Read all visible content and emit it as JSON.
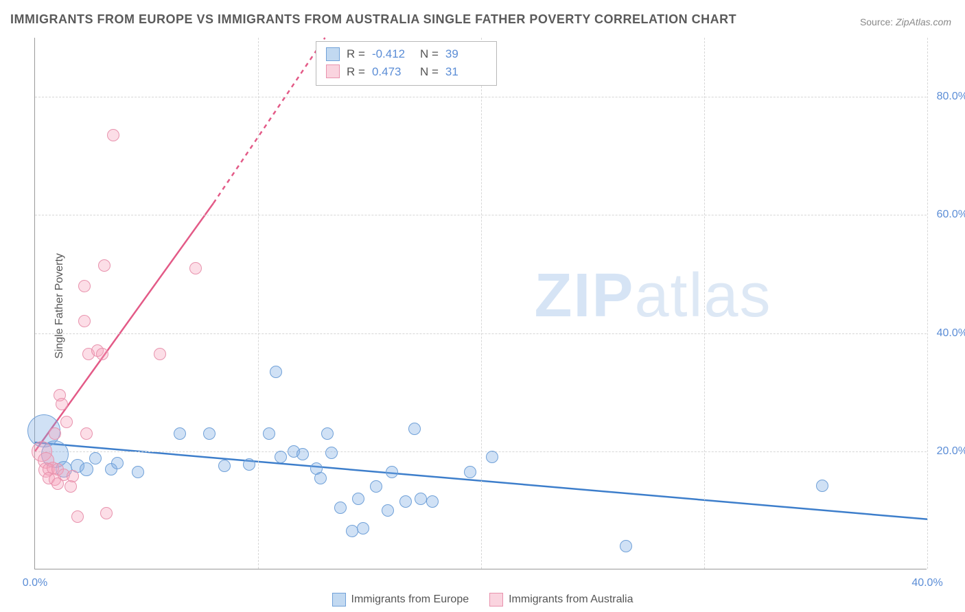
{
  "title": "IMMIGRANTS FROM EUROPE VS IMMIGRANTS FROM AUSTRALIA SINGLE FATHER POVERTY CORRELATION CHART",
  "source_label": "Source:",
  "source_value": "ZipAtlas.com",
  "y_axis_title": "Single Father Poverty",
  "watermark_bold": "ZIP",
  "watermark_thin": "atlas",
  "chart": {
    "type": "scatter",
    "xlim": [
      0,
      40
    ],
    "ylim": [
      0,
      90
    ],
    "x_ticks": [
      0,
      10,
      20,
      30,
      40
    ],
    "x_tick_labels": [
      "0.0%",
      "",
      "",
      "",
      "40.0%"
    ],
    "y_ticks": [
      20,
      40,
      60,
      80
    ],
    "y_tick_labels": [
      "20.0%",
      "40.0%",
      "60.0%",
      "80.0%"
    ],
    "background_color": "#ffffff",
    "grid_color": "#d6d6d6",
    "grid_dashed": true,
    "series": [
      {
        "name": "Immigrants from Europe",
        "color_fill": "rgba(120,170,225,0.35)",
        "color_stroke": "#6fa0d8",
        "line_color": "#3d7ecb",
        "marker_r_base": 9,
        "R": "-0.412",
        "N": "39",
        "regression": {
          "x1": 0,
          "y1": 21.5,
          "x2": 40,
          "y2": 8.5
        },
        "points": [
          {
            "x": 0.4,
            "y": 23.5,
            "r": 24
          },
          {
            "x": 0.9,
            "y": 19.5,
            "r": 20
          },
          {
            "x": 1.3,
            "y": 17.0,
            "r": 12
          },
          {
            "x": 1.9,
            "y": 17.5,
            "r": 10
          },
          {
            "x": 2.3,
            "y": 17.0,
            "r": 10
          },
          {
            "x": 2.7,
            "y": 18.8,
            "r": 9
          },
          {
            "x": 3.4,
            "y": 17.0,
            "r": 9
          },
          {
            "x": 3.7,
            "y": 18.0,
            "r": 9
          },
          {
            "x": 4.6,
            "y": 16.5,
            "r": 9
          },
          {
            "x": 6.5,
            "y": 23.0,
            "r": 9
          },
          {
            "x": 7.8,
            "y": 23.0,
            "r": 9
          },
          {
            "x": 8.5,
            "y": 17.5,
            "r": 9
          },
          {
            "x": 9.6,
            "y": 17.8,
            "r": 9
          },
          {
            "x": 10.5,
            "y": 23.0,
            "r": 9
          },
          {
            "x": 10.8,
            "y": 33.5,
            "r": 9
          },
          {
            "x": 11.0,
            "y": 19.0,
            "r": 9
          },
          {
            "x": 11.6,
            "y": 20.0,
            "r": 9
          },
          {
            "x": 12.6,
            "y": 17.1,
            "r": 9
          },
          {
            "x": 12.8,
            "y": 15.5,
            "r": 9
          },
          {
            "x": 12.0,
            "y": 19.5,
            "r": 9
          },
          {
            "x": 13.1,
            "y": 23.0,
            "r": 9
          },
          {
            "x": 13.3,
            "y": 19.8,
            "r": 9
          },
          {
            "x": 13.7,
            "y": 10.5,
            "r": 9
          },
          {
            "x": 14.2,
            "y": 6.5,
            "r": 9
          },
          {
            "x": 14.5,
            "y": 12.0,
            "r": 9
          },
          {
            "x": 14.7,
            "y": 7.0,
            "r": 9
          },
          {
            "x": 15.3,
            "y": 14.0,
            "r": 9
          },
          {
            "x": 15.8,
            "y": 10.0,
            "r": 9
          },
          {
            "x": 16.0,
            "y": 16.5,
            "r": 9
          },
          {
            "x": 16.6,
            "y": 11.5,
            "r": 9
          },
          {
            "x": 17.0,
            "y": 23.8,
            "r": 9
          },
          {
            "x": 17.3,
            "y": 12.0,
            "r": 9
          },
          {
            "x": 17.8,
            "y": 11.5,
            "r": 9
          },
          {
            "x": 19.5,
            "y": 16.5,
            "r": 9
          },
          {
            "x": 20.5,
            "y": 19.0,
            "r": 9
          },
          {
            "x": 26.5,
            "y": 4.0,
            "r": 9
          },
          {
            "x": 35.3,
            "y": 14.2,
            "r": 9
          }
        ]
      },
      {
        "name": "Immigrants from Australia",
        "color_fill": "rgba(245,160,185,0.35)",
        "color_stroke": "#e892ad",
        "line_color": "#e35a87",
        "marker_r_base": 9,
        "R": "0.473",
        "N": "31",
        "regression": {
          "x1": 0,
          "y1": 20.0,
          "x2": 8.0,
          "y2": 62.0
        },
        "regression_dashed_extend": {
          "x1": 8.0,
          "y1": 62.0,
          "x2": 13.0,
          "y2": 90.0
        },
        "points": [
          {
            "x": 0.3,
            "y": 20.0,
            "r": 15
          },
          {
            "x": 0.5,
            "y": 18.5,
            "r": 12
          },
          {
            "x": 0.5,
            "y": 16.8,
            "r": 11
          },
          {
            "x": 0.6,
            "y": 17.0,
            "r": 9
          },
          {
            "x": 0.6,
            "y": 15.5,
            "r": 9
          },
          {
            "x": 0.8,
            "y": 17.2,
            "r": 9
          },
          {
            "x": 0.9,
            "y": 23.0,
            "r": 9
          },
          {
            "x": 0.9,
            "y": 15.2,
            "r": 9
          },
          {
            "x": 1.0,
            "y": 17.0,
            "r": 9
          },
          {
            "x": 1.0,
            "y": 14.5,
            "r": 9
          },
          {
            "x": 1.1,
            "y": 29.5,
            "r": 9
          },
          {
            "x": 1.2,
            "y": 28.0,
            "r": 9
          },
          {
            "x": 1.3,
            "y": 16.0,
            "r": 9
          },
          {
            "x": 1.4,
            "y": 25.0,
            "r": 9
          },
          {
            "x": 1.6,
            "y": 14.0,
            "r": 9
          },
          {
            "x": 1.7,
            "y": 15.8,
            "r": 9
          },
          {
            "x": 1.9,
            "y": 9.0,
            "r": 9
          },
          {
            "x": 2.2,
            "y": 42.0,
            "r": 9
          },
          {
            "x": 2.2,
            "y": 48.0,
            "r": 9
          },
          {
            "x": 2.3,
            "y": 23.0,
            "r": 9
          },
          {
            "x": 2.4,
            "y": 36.5,
            "r": 9
          },
          {
            "x": 2.8,
            "y": 37.0,
            "r": 9
          },
          {
            "x": 3.0,
            "y": 36.5,
            "r": 9
          },
          {
            "x": 3.1,
            "y": 51.5,
            "r": 9
          },
          {
            "x": 3.2,
            "y": 9.5,
            "r": 9
          },
          {
            "x": 3.5,
            "y": 73.5,
            "r": 9
          },
          {
            "x": 5.6,
            "y": 36.5,
            "r": 9
          },
          {
            "x": 7.2,
            "y": 51.0,
            "r": 9
          }
        ]
      }
    ]
  },
  "legend_bottom": [
    {
      "swatch": "blue",
      "label": "Immigrants from Europe"
    },
    {
      "swatch": "pink",
      "label": "Immigrants from Australia"
    }
  ]
}
